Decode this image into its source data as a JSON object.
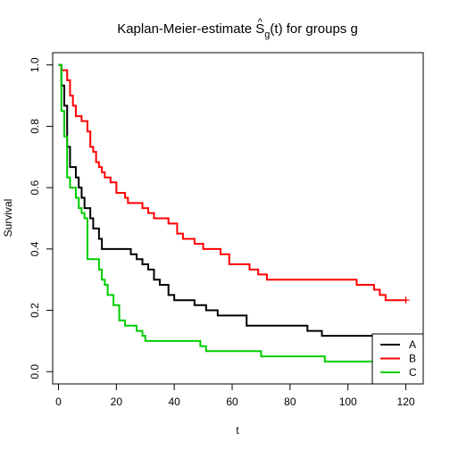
{
  "chart_data": {
    "type": "line",
    "title": {
      "prefix": "Kaplan-Meier-estimate ",
      "symbol": "S",
      "hat": "^",
      "subscript": "g",
      "arg": "(t)",
      "suffix": " for groups g"
    },
    "xlabel": "t",
    "ylabel": "Survival",
    "xlim": [
      -2,
      126
    ],
    "ylim": [
      -0.04,
      1.04
    ],
    "xticks": [
      0,
      20,
      40,
      60,
      80,
      100,
      120
    ],
    "yticks": [
      0.0,
      0.2,
      0.4,
      0.6,
      0.8,
      1.0
    ],
    "ytick_labels": [
      "0.0",
      "0.2",
      "0.4",
      "0.6",
      "0.8",
      "1.0"
    ],
    "grid": false,
    "legend_position": "bottom-right",
    "series": [
      {
        "name": "A",
        "color": "#000000",
        "steps": [
          [
            0,
            1.0
          ],
          [
            1,
            0.933
          ],
          [
            2,
            0.867
          ],
          [
            3,
            0.733
          ],
          [
            4,
            0.667
          ],
          [
            6,
            0.633
          ],
          [
            7,
            0.6
          ],
          [
            8,
            0.567
          ],
          [
            9,
            0.533
          ],
          [
            11,
            0.5
          ],
          [
            12,
            0.467
          ],
          [
            14,
            0.433
          ],
          [
            15,
            0.4
          ],
          [
            25,
            0.383
          ],
          [
            27,
            0.367
          ],
          [
            29,
            0.35
          ],
          [
            31,
            0.333
          ],
          [
            33,
            0.3
          ],
          [
            35,
            0.283
          ],
          [
            38,
            0.25
          ],
          [
            40,
            0.233
          ],
          [
            47,
            0.217
          ],
          [
            51,
            0.2
          ],
          [
            55,
            0.183
          ],
          [
            65,
            0.15
          ],
          [
            86,
            0.133
          ],
          [
            91,
            0.117
          ],
          [
            116,
            0.117
          ]
        ],
        "censored": []
      },
      {
        "name": "B",
        "color": "#ff0000",
        "steps": [
          [
            0,
            1.0
          ],
          [
            1,
            0.983
          ],
          [
            3,
            0.95
          ],
          [
            4,
            0.9
          ],
          [
            5,
            0.867
          ],
          [
            6,
            0.833
          ],
          [
            8,
            0.817
          ],
          [
            10,
            0.783
          ],
          [
            11,
            0.733
          ],
          [
            12,
            0.717
          ],
          [
            13,
            0.683
          ],
          [
            14,
            0.667
          ],
          [
            15,
            0.65
          ],
          [
            16,
            0.633
          ],
          [
            18,
            0.617
          ],
          [
            20,
            0.583
          ],
          [
            23,
            0.567
          ],
          [
            24,
            0.55
          ],
          [
            29,
            0.533
          ],
          [
            31,
            0.517
          ],
          [
            33,
            0.5
          ],
          [
            38,
            0.483
          ],
          [
            41,
            0.45
          ],
          [
            43,
            0.433
          ],
          [
            47,
            0.417
          ],
          [
            50,
            0.4
          ],
          [
            56,
            0.383
          ],
          [
            59,
            0.35
          ],
          [
            66,
            0.333
          ],
          [
            69,
            0.317
          ],
          [
            72,
            0.3
          ],
          [
            103,
            0.283
          ],
          [
            109,
            0.267
          ],
          [
            111,
            0.25
          ],
          [
            113,
            0.233
          ],
          [
            120,
            0.233
          ]
        ],
        "censored": [
          [
            120,
            0.233
          ]
        ]
      },
      {
        "name": "C",
        "color": "#00cd00",
        "steps": [
          [
            0,
            1.0
          ],
          [
            1,
            0.85
          ],
          [
            2,
            0.767
          ],
          [
            3,
            0.633
          ],
          [
            4,
            0.6
          ],
          [
            6,
            0.567
          ],
          [
            7,
            0.533
          ],
          [
            8,
            0.517
          ],
          [
            9,
            0.5
          ],
          [
            10,
            0.367
          ],
          [
            14,
            0.333
          ],
          [
            15,
            0.3
          ],
          [
            16,
            0.283
          ],
          [
            17,
            0.25
          ],
          [
            19,
            0.217
          ],
          [
            21,
            0.167
          ],
          [
            23,
            0.15
          ],
          [
            27,
            0.133
          ],
          [
            29,
            0.117
          ],
          [
            30,
            0.1
          ],
          [
            49,
            0.083
          ],
          [
            51,
            0.067
          ],
          [
            70,
            0.05
          ],
          [
            92,
            0.033
          ],
          [
            116,
            0.033
          ]
        ],
        "censored": []
      }
    ]
  }
}
